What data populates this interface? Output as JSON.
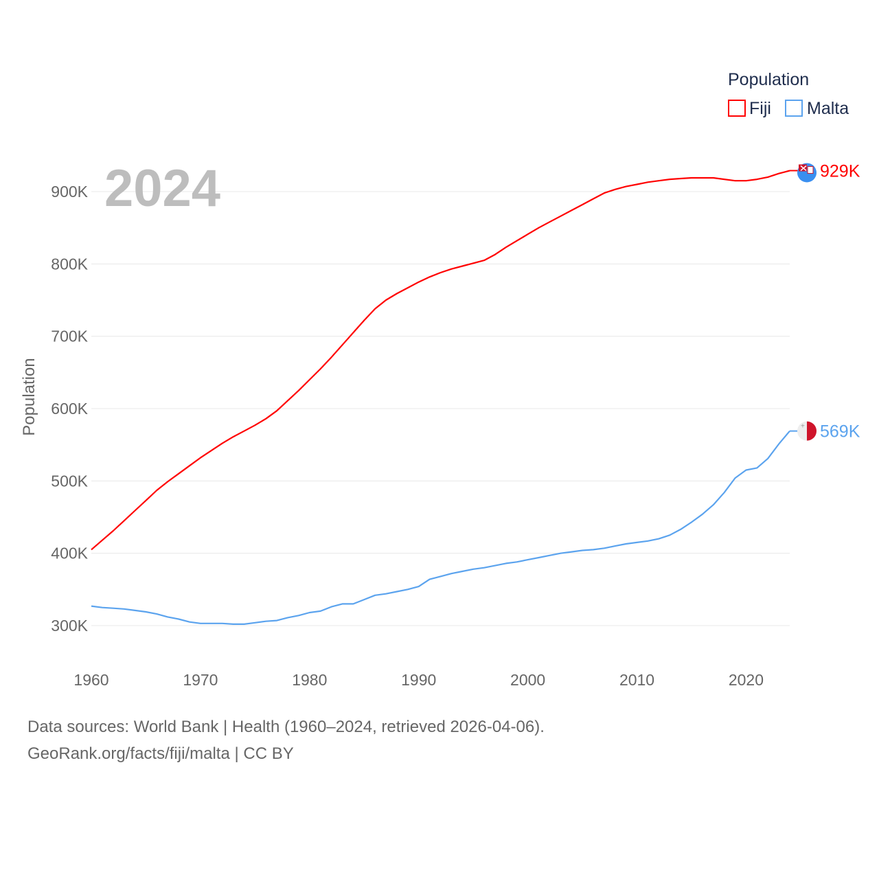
{
  "chart_data": {
    "type": "line",
    "title": "2024",
    "xlabel": "",
    "ylabel": "Population",
    "xlim": [
      1960,
      2024
    ],
    "ylim": [
      250000,
      950000
    ],
    "x_ticks": [
      1960,
      1970,
      1980,
      1990,
      2000,
      2010,
      2020
    ],
    "x_tick_labels": [
      "1960",
      "1970",
      "1980",
      "1990",
      "2000",
      "2010",
      "2020"
    ],
    "y_ticks": [
      300000,
      400000,
      500000,
      600000,
      700000,
      800000,
      900000
    ],
    "y_tick_labels": [
      "300K",
      "400K",
      "500K",
      "600K",
      "700K",
      "800K",
      "900K"
    ],
    "grid": true,
    "legend": {
      "title": "Population",
      "placement": "top-right"
    },
    "x": [
      1960,
      1961,
      1962,
      1963,
      1964,
      1965,
      1966,
      1967,
      1968,
      1969,
      1970,
      1971,
      1972,
      1973,
      1974,
      1975,
      1976,
      1977,
      1978,
      1979,
      1980,
      1981,
      1982,
      1983,
      1984,
      1985,
      1986,
      1987,
      1988,
      1989,
      1990,
      1991,
      1992,
      1993,
      1994,
      1995,
      1996,
      1997,
      1998,
      1999,
      2000,
      2001,
      2002,
      2003,
      2004,
      2005,
      2006,
      2007,
      2008,
      2009,
      2010,
      2011,
      2012,
      2013,
      2014,
      2015,
      2016,
      2017,
      2018,
      2019,
      2020,
      2021,
      2022,
      2023,
      2024
    ],
    "series": [
      {
        "name": "Fiji",
        "color": "#ff0000",
        "end_label": "929K",
        "values": [
          405,
          418,
          431,
          445,
          459,
          473,
          487,
          499,
          510,
          521,
          532,
          542,
          552,
          561,
          569,
          577,
          586,
          597,
          611,
          625,
          640,
          655,
          671,
          688,
          705,
          722,
          738,
          750,
          759,
          767,
          775,
          782,
          788,
          793,
          797,
          801,
          805,
          813,
          823,
          832,
          841,
          850,
          858,
          866,
          874,
          882,
          890,
          898,
          903,
          907,
          910,
          913,
          915,
          917,
          918,
          919,
          919,
          919,
          917,
          915,
          915,
          917,
          920,
          925,
          929
        ]
      },
      {
        "name": "Malta",
        "color": "#5ba3ee",
        "end_label": "569K",
        "values": [
          327,
          325,
          324,
          323,
          321,
          319,
          316,
          312,
          309,
          305,
          303,
          303,
          303,
          302,
          302,
          304,
          306,
          307,
          311,
          314,
          318,
          320,
          326,
          330,
          330,
          336,
          342,
          344,
          347,
          350,
          354,
          364,
          368,
          372,
          375,
          378,
          380,
          383,
          386,
          388,
          391,
          394,
          397,
          400,
          402,
          404,
          405,
          407,
          410,
          413,
          415,
          417,
          420,
          425,
          433,
          443,
          454,
          467,
          484,
          504,
          515,
          518,
          531,
          551,
          569
        ]
      }
    ],
    "value_unit": "thousands"
  },
  "footer": {
    "line1": "Data sources: World Bank | Health (1960–2024, retrieved 2026-04-06).",
    "line2": "GeoRank.org/facts/fiji/malta | CC BY"
  }
}
